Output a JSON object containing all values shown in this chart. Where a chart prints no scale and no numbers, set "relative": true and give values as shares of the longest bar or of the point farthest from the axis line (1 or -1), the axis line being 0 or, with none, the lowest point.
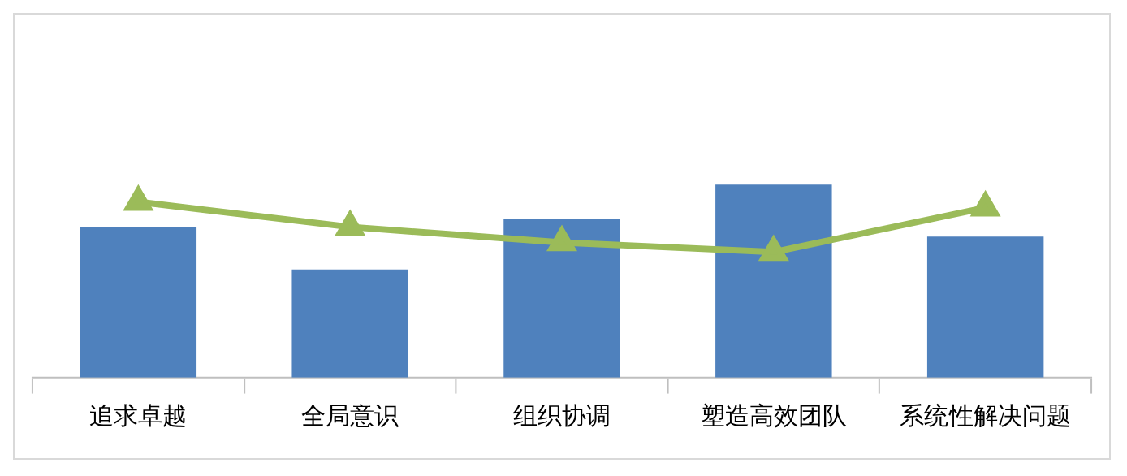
{
  "chart_data": {
    "type": "bar",
    "relative": true,
    "categories": [
      "追求卓越",
      "全局意识",
      "组织协调",
      "塑造高效团队",
      "系统性解决问题"
    ],
    "series": [
      {
        "color": "#4f81bd",
        "values": [
          0.78,
          0.56,
          0.82,
          1,
          0.73
        ]
      },
      {
        "type": "line",
        "color": "#9bbb59",
        "marker": "triangle",
        "values": [
          0.91,
          0.78,
          0.7,
          0.65,
          0.88
        ]
      }
    ],
    "grid": false,
    "legend": false
  }
}
